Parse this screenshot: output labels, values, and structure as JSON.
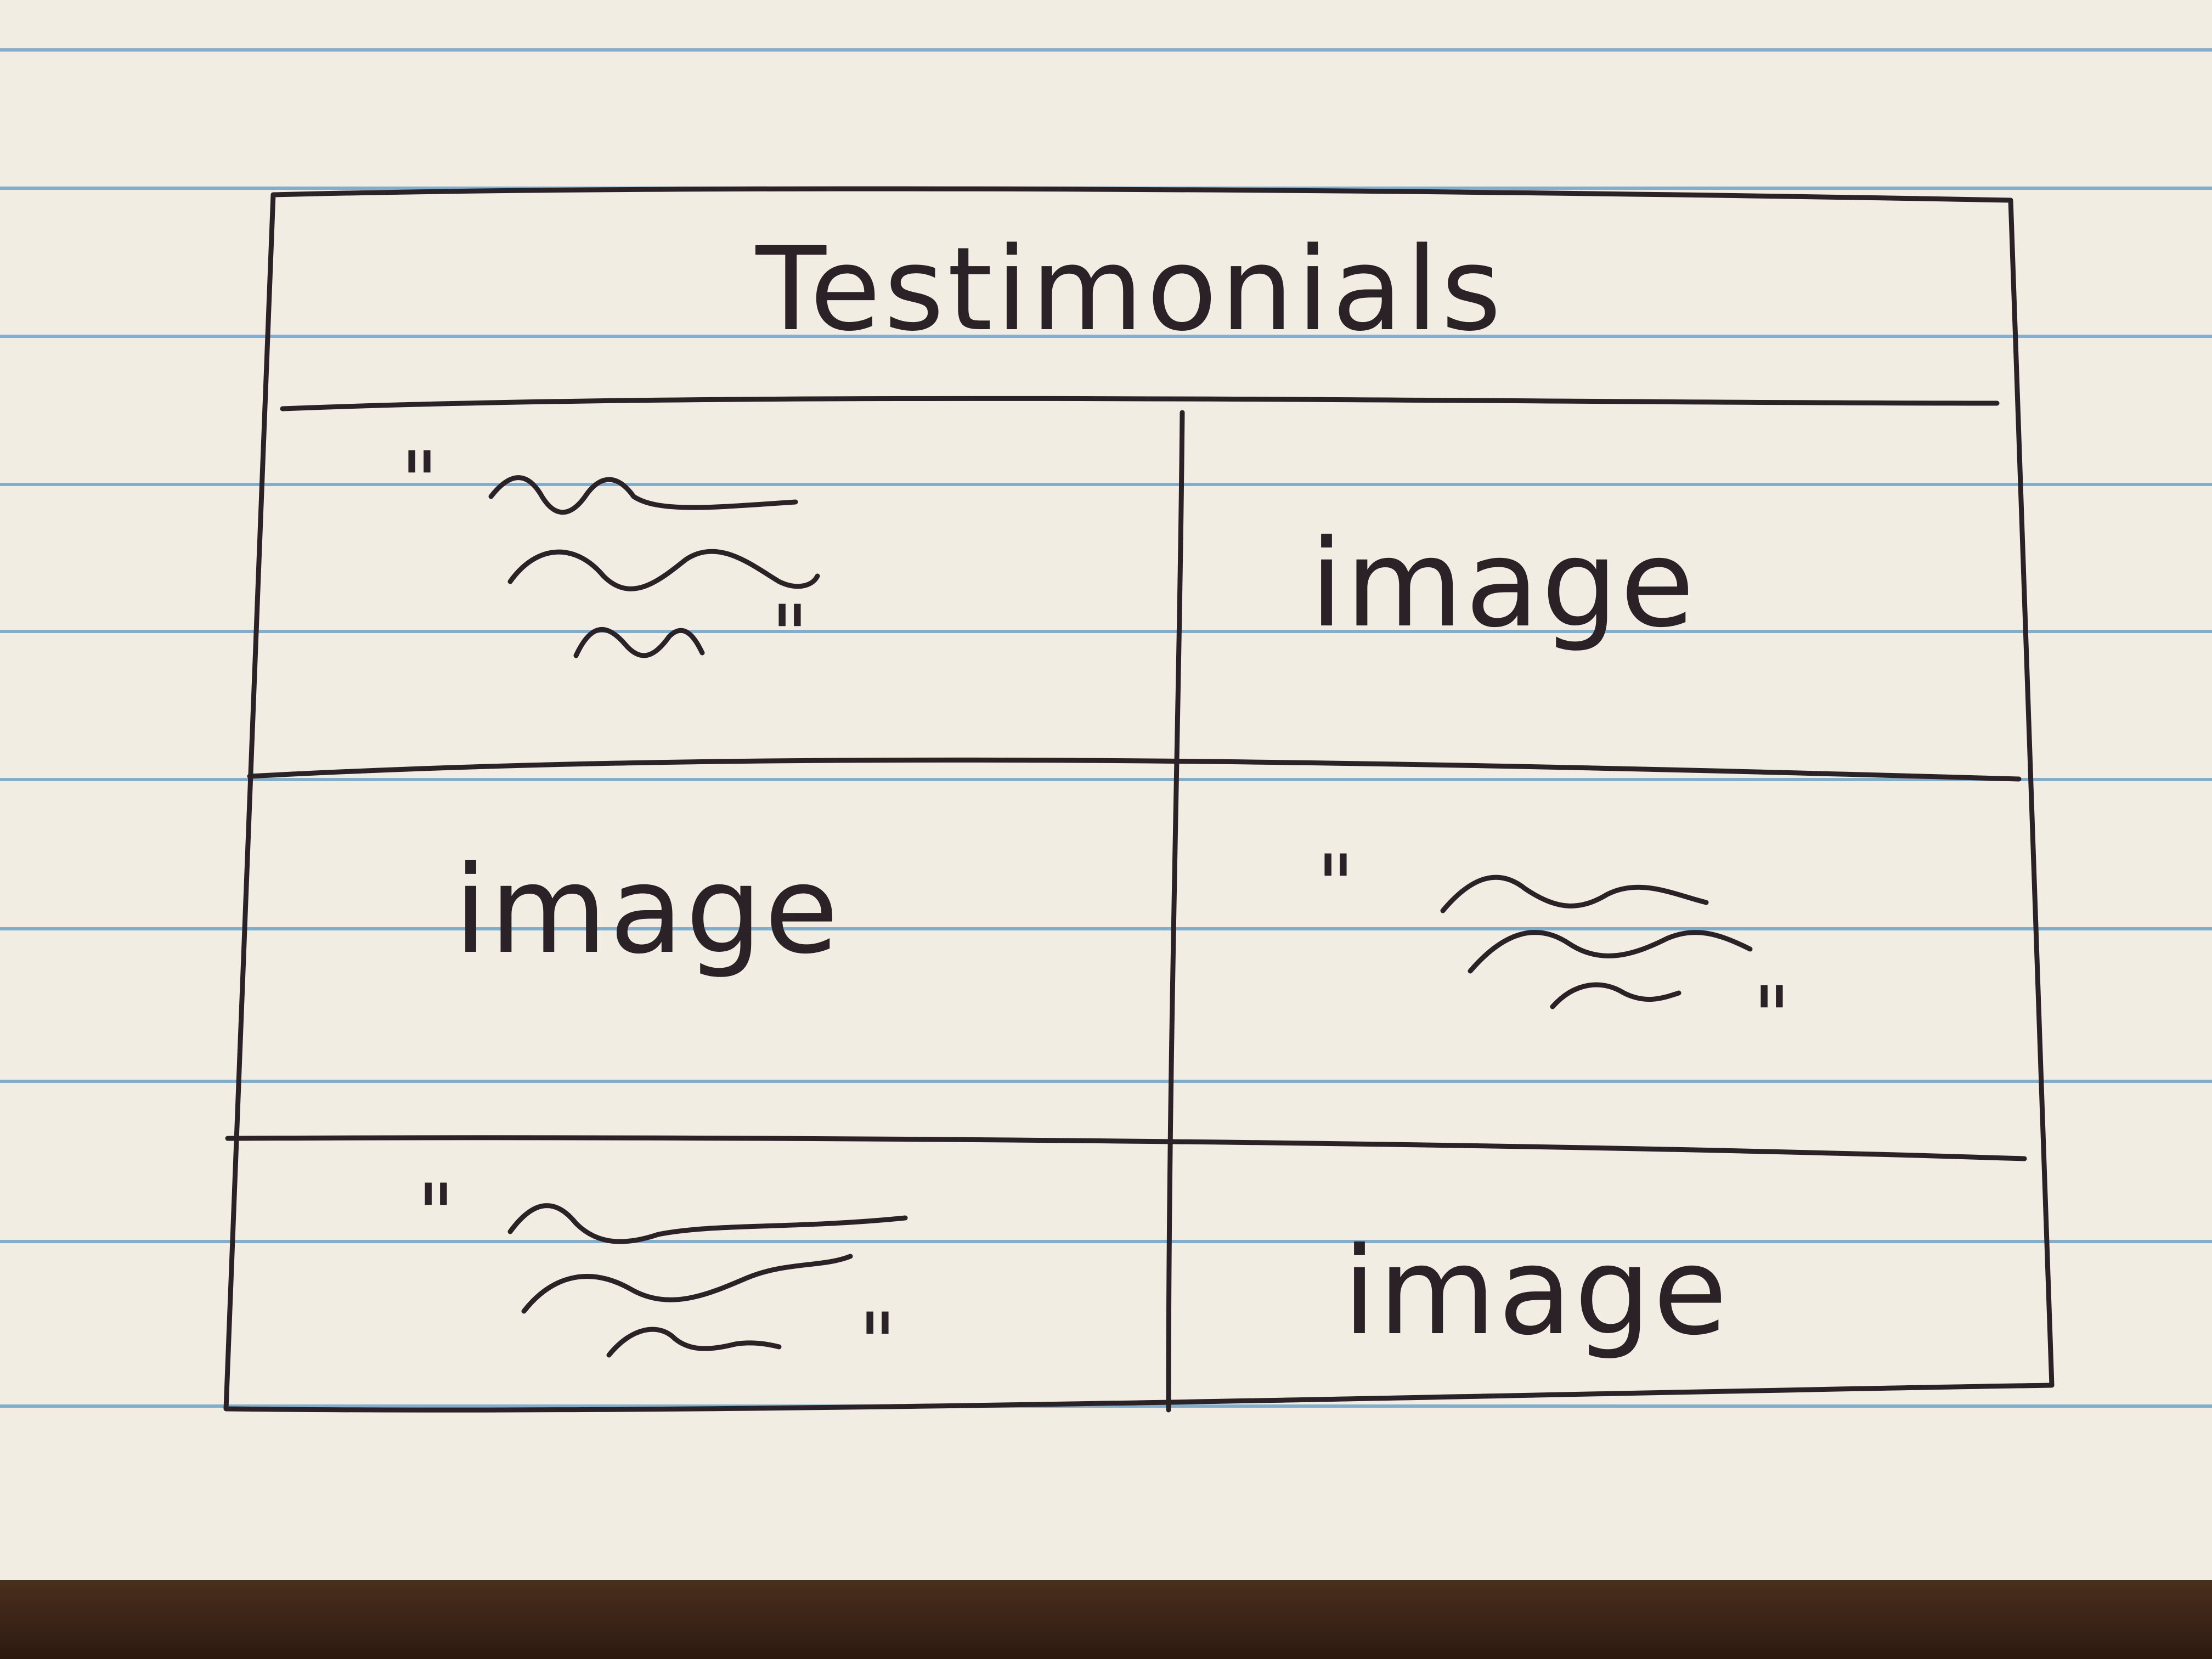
{
  "sketch": {
    "title": "Testimonials",
    "rows": [
      {
        "left": {
          "kind": "quote",
          "open": "\"",
          "close": "\""
        },
        "right": {
          "kind": "image",
          "label": "image"
        }
      },
      {
        "left": {
          "kind": "image",
          "label": "image"
        },
        "right": {
          "kind": "quote",
          "open": "\"",
          "close": "\""
        }
      },
      {
        "left": {
          "kind": "quote",
          "open": "\"",
          "close": "\""
        },
        "right": {
          "kind": "image",
          "label": "image"
        }
      }
    ]
  },
  "colors": {
    "paper": "#f1ede2",
    "rule_line": "#6fa2c9",
    "ink": "#2a2226",
    "desk": "#3a2518"
  }
}
